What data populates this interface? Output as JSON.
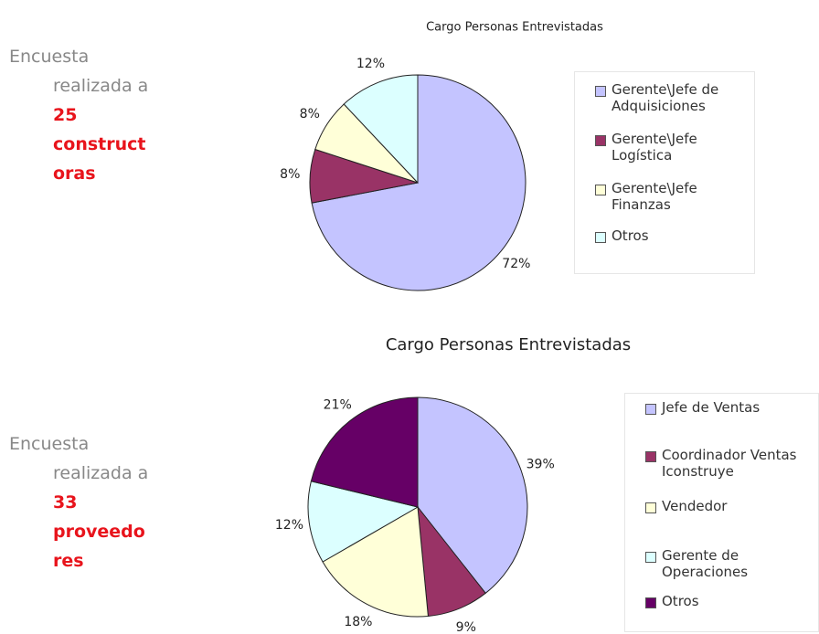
{
  "chart_data": [
    {
      "type": "pie",
      "title": "Cargo Personas Entrevistadas",
      "categories": [
        "Gerente\\Jefe de Adquisiciones",
        "Gerente\\Jefe Logística",
        "Gerente\\Jefe Finanzas",
        "Otros"
      ],
      "values": [
        72,
        8,
        8,
        12
      ],
      "value_labels": [
        "72%",
        "8%",
        "8%",
        "12%"
      ],
      "colors": [
        "#c4c4ff",
        "#993366",
        "#ffffd8",
        "#dcffff"
      ],
      "legend": "right"
    },
    {
      "type": "pie",
      "title": "Cargo Personas Entrevistadas",
      "categories": [
        "Jefe de Ventas",
        "Coordinador Ventas Iconstruye",
        "Vendedor",
        "Gerente de Operaciones",
        "Otros"
      ],
      "values": [
        39,
        9,
        18,
        12,
        21
      ],
      "value_labels": [
        "39%",
        "9%",
        "18%",
        "12%",
        "21%"
      ],
      "colors": [
        "#c4c4ff",
        "#993366",
        "#ffffd8",
        "#dcffff",
        "#660066"
      ],
      "legend": "right"
    }
  ],
  "notes": [
    {
      "lines": [
        "Encuesta",
        "realizada a"
      ],
      "highlight": [
        "25",
        "construct",
        "oras"
      ]
    },
    {
      "lines": [
        "Encuesta",
        "realizada a"
      ],
      "highlight": [
        "33",
        "proveedo",
        "res"
      ]
    }
  ]
}
